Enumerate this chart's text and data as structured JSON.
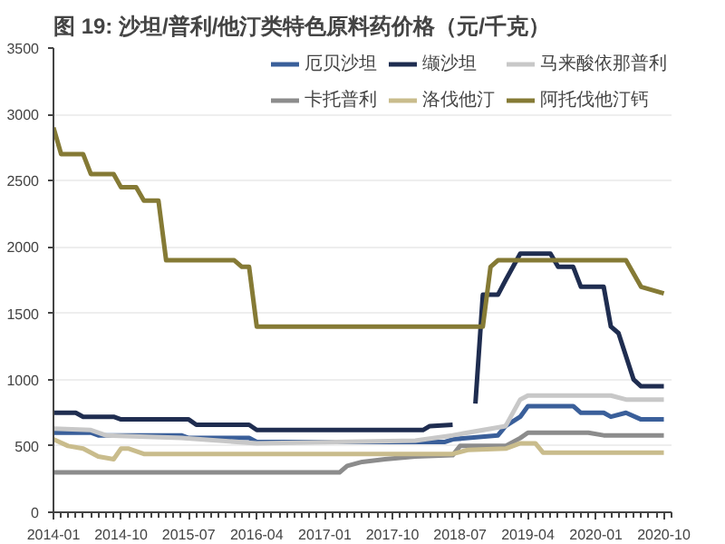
{
  "chart_data": {
    "type": "line",
    "title": "图 19: 沙坦/普利/他汀类特色原料药价格（元/千克）",
    "xlim": [
      "2014-01",
      "2020-11"
    ],
    "xticks": [
      {
        "value": "2014-01",
        "label": "2014-01"
      },
      {
        "value": "2014-10",
        "label": "2014-10"
      },
      {
        "value": "2015-07",
        "label": "2015-07"
      },
      {
        "value": "2016-04",
        "label": "2016-04"
      },
      {
        "value": "2017-01",
        "label": "2017-01"
      },
      {
        "value": "2017-10",
        "label": "2017-10"
      },
      {
        "value": "2018-07",
        "label": "2018-07"
      },
      {
        "value": "2019-04",
        "label": "2019-04"
      },
      {
        "value": "2020-01",
        "label": "2020-01"
      },
      {
        "value": "2020-10",
        "label": "2020-10"
      }
    ],
    "ylim": [
      0,
      3500
    ],
    "yticks": [
      0,
      500,
      1000,
      1500,
      2000,
      2500,
      3000,
      3500
    ],
    "grid": "y",
    "legend": "top right",
    "line_style": "solid",
    "marker": "none",
    "series": [
      {
        "name": "厄贝沙坦",
        "color": "#3a5f9a",
        "x": [
          "2014-01",
          "2014-06",
          "2014-07",
          "2015-06",
          "2015-07",
          "2016-03",
          "2016-04",
          "2018-05",
          "2018-06",
          "2018-12",
          "2019-01",
          "2019-03",
          "2019-04",
          "2019-10",
          "2019-11",
          "2020-02",
          "2020-03",
          "2020-05",
          "2020-07",
          "2020-10"
        ],
        "values": [
          600,
          600,
          580,
          580,
          560,
          560,
          530,
          530,
          550,
          580,
          650,
          720,
          800,
          800,
          750,
          750,
          720,
          750,
          700,
          700
        ]
      },
      {
        "name": "缬沙坦",
        "color": "#1f2d50",
        "x": [
          "2014-01",
          "2014-04",
          "2014-05",
          "2014-09",
          "2014-10",
          "2015-07",
          "2015-08",
          "2016-03",
          "2016-04",
          "2018-02",
          "2018-03",
          "2018-06",
          "2018-07",
          "2018-09",
          "2018-10",
          "2018-12",
          "2019-01",
          "2019-03",
          "2019-07",
          "2019-08",
          "2019-10",
          "2019-11",
          "2020-02",
          "2020-03",
          "2020-04",
          "2020-06",
          "2020-07",
          "2020-10"
        ],
        "values": [
          750,
          750,
          720,
          720,
          700,
          700,
          660,
          660,
          620,
          620,
          650,
          660,
          null,
          820,
          1640,
          1640,
          1750,
          1950,
          1950,
          1850,
          1850,
          1700,
          1700,
          1400,
          1350,
          1000,
          950,
          950
        ]
      },
      {
        "name": "马来酸依那普利",
        "color": "#c8c8c8",
        "x": [
          "2014-01",
          "2014-06",
          "2014-08",
          "2015-06",
          "2016-04",
          "2018-01",
          "2018-06",
          "2019-01",
          "2019-03",
          "2019-04",
          "2020-03",
          "2020-05",
          "2020-10"
        ],
        "values": [
          630,
          620,
          580,
          560,
          520,
          540,
          580,
          650,
          850,
          880,
          880,
          850,
          850
        ]
      },
      {
        "name": "卡托普利",
        "color": "#8c8c8c",
        "x": [
          "2014-01",
          "2017-03",
          "2017-04",
          "2017-06",
          "2017-09",
          "2018-01",
          "2018-06",
          "2018-07",
          "2019-01",
          "2019-03",
          "2019-04",
          "2019-12",
          "2020-02",
          "2020-10"
        ],
        "values": [
          300,
          300,
          350,
          380,
          400,
          420,
          430,
          500,
          500,
          560,
          600,
          600,
          580,
          580
        ]
      },
      {
        "name": "洛伐他汀",
        "color": "#c9bc8c",
        "x": [
          "2014-01",
          "2014-03",
          "2014-05",
          "2014-07",
          "2014-09",
          "2014-10",
          "2014-11",
          "2015-01",
          "2018-06",
          "2018-08",
          "2019-01",
          "2019-03",
          "2019-05",
          "2019-06",
          "2020-10"
        ],
        "values": [
          550,
          500,
          480,
          420,
          400,
          480,
          480,
          440,
          440,
          470,
          480,
          520,
          520,
          450,
          450
        ]
      },
      {
        "name": "阿托伐他汀钙",
        "color": "#857a35",
        "x": [
          "2014-01",
          "2014-02",
          "2014-05",
          "2014-06",
          "2014-09",
          "2014-10",
          "2014-12",
          "2015-01",
          "2015-03",
          "2015-04",
          "2016-01",
          "2016-02",
          "2016-03",
          "2016-04",
          "2018-10",
          "2018-11",
          "2018-12",
          "2020-05",
          "2020-07",
          "2020-10"
        ],
        "values": [
          2900,
          2700,
          2700,
          2550,
          2550,
          2450,
          2450,
          2350,
          2350,
          1900,
          1900,
          1850,
          1850,
          1400,
          1400,
          1850,
          1900,
          1900,
          1700,
          1650
        ]
      }
    ]
  }
}
